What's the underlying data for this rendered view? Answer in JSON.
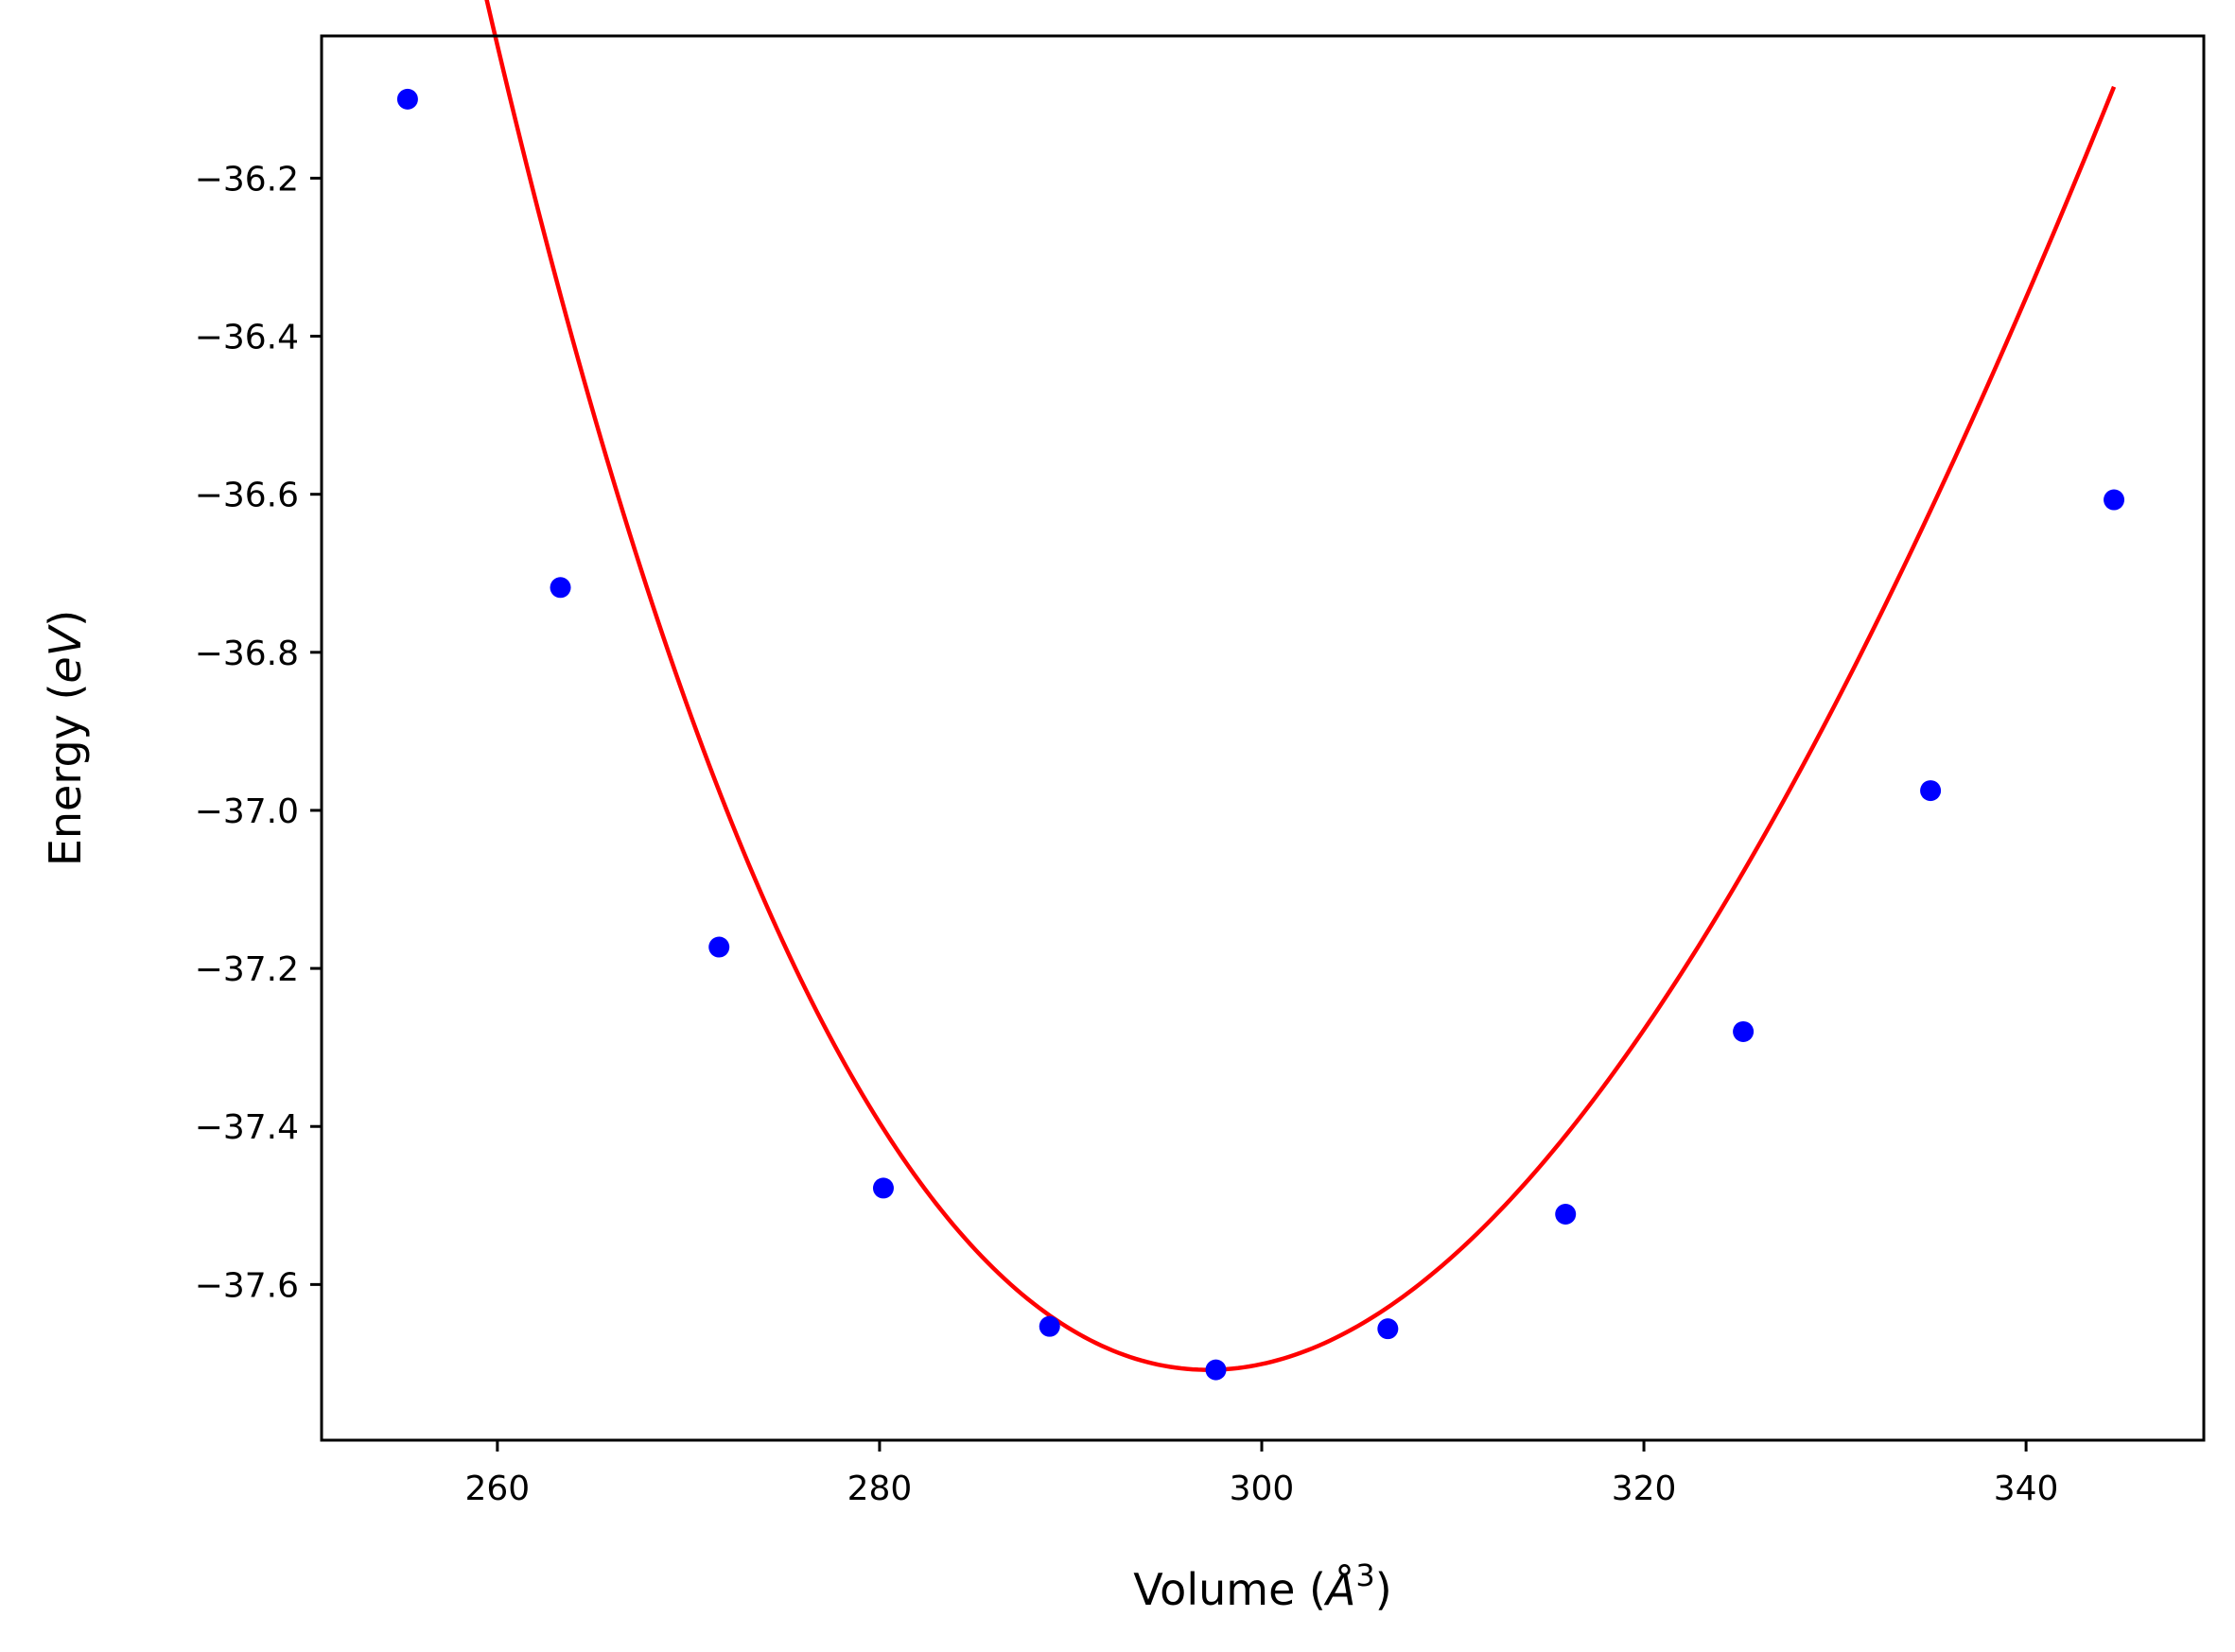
{
  "chart_data": {
    "type": "scatter",
    "title": "",
    "xlabel": {
      "text": "Volume (",
      "italic": "Å",
      "sup": "3",
      "suffix": ")"
    },
    "ylabel": {
      "text": "Energy (",
      "italic": "eV",
      "suffix": ")"
    },
    "xlim": [
      250.8,
      349.3
    ],
    "ylim": [
      -37.797,
      -36.02
    ],
    "xticks": [
      260,
      280,
      300,
      320,
      340
    ],
    "xtick_labels": [
      "260",
      "280",
      "300",
      "320",
      "340"
    ],
    "yticks": [
      -36.2,
      -36.4,
      -36.6,
      -36.8,
      -37.0,
      -37.2,
      -37.4,
      -37.6
    ],
    "ytick_labels": [
      "−36.2",
      "−36.4",
      "−36.6",
      "−36.8",
      "−37.0",
      "−37.2",
      "−37.4",
      "−37.6"
    ],
    "grid": false,
    "legend": "none",
    "series": [
      {
        "kind": "points",
        "color": "#0000ff",
        "x": [
          255.3,
          263.3,
          271.6,
          280.2,
          288.9,
          297.6,
          306.6,
          315.9,
          325.2,
          335.0,
          344.6
        ],
        "y": [
          -36.1,
          -36.718,
          -37.173,
          -37.478,
          -37.653,
          -37.708,
          -37.656,
          -37.511,
          -37.28,
          -36.975,
          -36.607
        ]
      },
      {
        "kind": "fit-line",
        "color": "#ff0000",
        "fit": {
          "v0": 297.2,
          "e0": -37.708,
          "b0_ev_per_a3": 0.5635,
          "b_prime": 4.5
        }
      }
    ]
  }
}
